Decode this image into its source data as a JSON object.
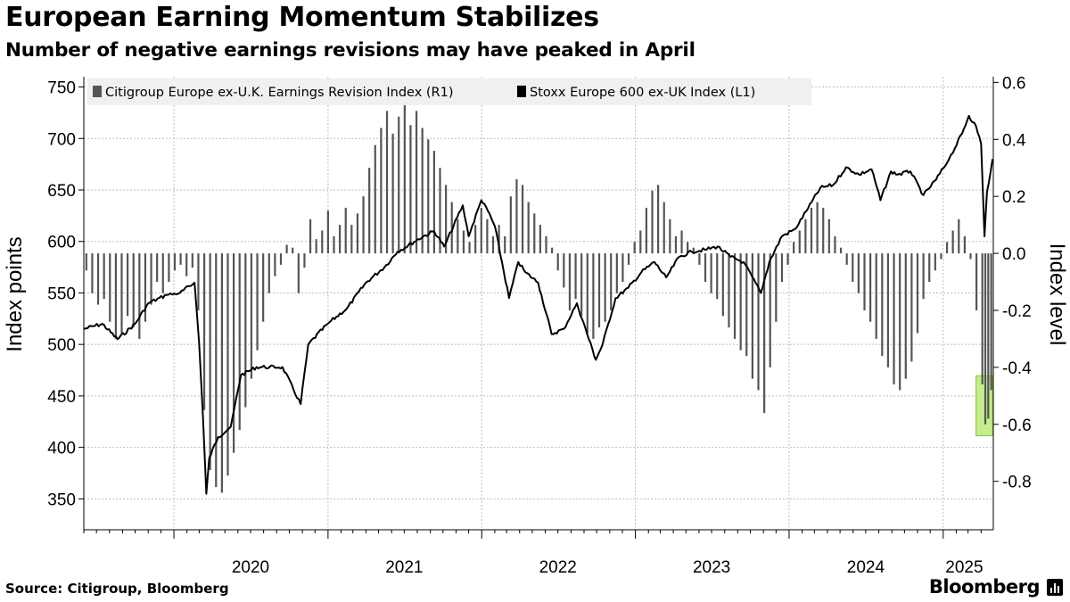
{
  "header": {
    "title": "European Earning Momentum Stabilizes",
    "subtitle": "Number of negative earnings revisions may have peaked in April"
  },
  "footer": {
    "source": "Source: Citigroup, Bloomberg",
    "brand": "Bloomberg"
  },
  "colors": {
    "bars": "#555555",
    "line": "#000000",
    "grid": "#bdbdbd",
    "highlight_fill": "#c6ec8e",
    "highlight_stroke": "#86c232",
    "legend_bg": "#f0f0f0"
  },
  "chart_data": {
    "type": "bar+line",
    "title": "European Earning Momentum Stabilizes",
    "subtitle": "Number of negative earnings revisions may have peaked in April",
    "legend": [
      {
        "label": "Citigroup Europe ex-U.K. Earnings Revision Index (R1)",
        "swatch": "#555555"
      },
      {
        "label": "Stoxx Europe 600 ex-UK Index (L1)",
        "swatch": "#000000"
      }
    ],
    "legend_position": "top-left",
    "grid": true,
    "x_axis": {
      "type": "date",
      "range": [
        "2019-06-01",
        "2025-04-30"
      ],
      "tick_labels": [
        "2020",
        "2021",
        "2022",
        "2023",
        "2024",
        "2025"
      ]
    },
    "y_left": {
      "label": "Index points",
      "ylim": [
        320,
        760
      ],
      "ticks": [
        350,
        400,
        450,
        500,
        550,
        600,
        650,
        700,
        750
      ]
    },
    "y_right": {
      "label": "Index level",
      "ylim": [
        -0.97,
        0.62
      ],
      "ticks": [
        "0.6",
        "0.4",
        "0.2",
        "0.0",
        "-0.2",
        "-0.4",
        "-0.6",
        "-0.8"
      ]
    },
    "highlight": {
      "x_range": [
        "2025-03-20",
        "2025-04-28"
      ],
      "y_range_right": [
        -0.64,
        -0.43
      ]
    },
    "series": [
      {
        "name": "Stoxx Europe 600 ex-UK Index (L1)",
        "type": "line",
        "axis": "left",
        "points": [
          [
            "2019-06-01",
            515
          ],
          [
            "2019-07-15",
            520
          ],
          [
            "2019-08-20",
            505
          ],
          [
            "2019-10-01",
            520
          ],
          [
            "2019-11-01",
            540
          ],
          [
            "2019-12-15",
            548
          ],
          [
            "2020-01-15",
            550
          ],
          [
            "2020-02-19",
            560
          ],
          [
            "2020-03-01",
            500
          ],
          [
            "2020-03-10",
            430
          ],
          [
            "2020-03-18",
            355
          ],
          [
            "2020-03-25",
            390
          ],
          [
            "2020-04-15",
            410
          ],
          [
            "2020-05-15",
            420
          ],
          [
            "2020-06-08",
            470
          ],
          [
            "2020-07-15",
            478
          ],
          [
            "2020-08-15",
            478
          ],
          [
            "2020-09-15",
            478
          ],
          [
            "2020-10-28",
            442
          ],
          [
            "2020-11-15",
            500
          ],
          [
            "2020-12-31",
            520
          ],
          [
            "2021-02-15",
            535
          ],
          [
            "2021-04-01",
            560
          ],
          [
            "2021-05-15",
            575
          ],
          [
            "2021-06-15",
            590
          ],
          [
            "2021-08-15",
            605
          ],
          [
            "2021-09-10",
            610
          ],
          [
            "2021-10-04",
            595
          ],
          [
            "2021-11-17",
            635
          ],
          [
            "2021-12-01",
            605
          ],
          [
            "2021-12-31",
            640
          ],
          [
            "2022-01-15",
            630
          ],
          [
            "2022-02-01",
            615
          ],
          [
            "2022-03-07",
            545
          ],
          [
            "2022-03-29",
            580
          ],
          [
            "2022-04-15",
            570
          ],
          [
            "2022-05-15",
            560
          ],
          [
            "2022-06-16",
            510
          ],
          [
            "2022-07-15",
            515
          ],
          [
            "2022-08-15",
            540
          ],
          [
            "2022-09-29",
            485
          ],
          [
            "2022-10-15",
            500
          ],
          [
            "2022-11-15",
            545
          ],
          [
            "2022-12-15",
            555
          ],
          [
            "2023-01-15",
            570
          ],
          [
            "2023-02-15",
            580
          ],
          [
            "2023-03-15",
            565
          ],
          [
            "2023-04-15",
            585
          ],
          [
            "2023-05-15",
            590
          ],
          [
            "2023-06-15",
            592
          ],
          [
            "2023-07-15",
            595
          ],
          [
            "2023-08-15",
            585
          ],
          [
            "2023-09-15",
            580
          ],
          [
            "2023-10-26",
            550
          ],
          [
            "2023-11-15",
            580
          ],
          [
            "2023-12-15",
            605
          ],
          [
            "2024-01-15",
            612
          ],
          [
            "2024-02-15",
            632
          ],
          [
            "2024-03-15",
            652
          ],
          [
            "2024-04-15",
            655
          ],
          [
            "2024-05-15",
            672
          ],
          [
            "2024-06-15",
            665
          ],
          [
            "2024-07-15",
            670
          ],
          [
            "2024-08-05",
            640
          ],
          [
            "2024-08-30",
            668
          ],
          [
            "2024-09-15",
            665
          ],
          [
            "2024-10-15",
            668
          ],
          [
            "2024-11-15",
            645
          ],
          [
            "2024-12-15",
            660
          ],
          [
            "2025-01-15",
            680
          ],
          [
            "2025-02-15",
            705
          ],
          [
            "2025-03-03",
            722
          ],
          [
            "2025-03-20",
            712
          ],
          [
            "2025-04-01",
            695
          ],
          [
            "2025-04-09",
            605
          ],
          [
            "2025-04-15",
            648
          ],
          [
            "2025-04-28",
            680
          ]
        ]
      },
      {
        "name": "Citigroup Europe ex-U.K. Earnings Revision Index (R1)",
        "type": "bar",
        "axis": "right",
        "points": [
          [
            "2019-06-07",
            -0.06
          ],
          [
            "2019-06-21",
            -0.14
          ],
          [
            "2019-07-05",
            -0.18
          ],
          [
            "2019-07-19",
            -0.16
          ],
          [
            "2019-08-02",
            -0.24
          ],
          [
            "2019-08-16",
            -0.3
          ],
          [
            "2019-08-30",
            -0.28
          ],
          [
            "2019-09-13",
            -0.22
          ],
          [
            "2019-09-27",
            -0.26
          ],
          [
            "2019-10-11",
            -0.3
          ],
          [
            "2019-10-25",
            -0.24
          ],
          [
            "2019-11-08",
            -0.18
          ],
          [
            "2019-11-22",
            -0.1
          ],
          [
            "2019-12-06",
            -0.14
          ],
          [
            "2019-12-20",
            -0.1
          ],
          [
            "2020-01-03",
            -0.06
          ],
          [
            "2020-01-17",
            -0.04
          ],
          [
            "2020-01-31",
            -0.08
          ],
          [
            "2020-02-14",
            -0.05
          ],
          [
            "2020-02-28",
            -0.2
          ],
          [
            "2020-03-13",
            -0.55
          ],
          [
            "2020-03-27",
            -0.76
          ],
          [
            "2020-04-10",
            -0.82
          ],
          [
            "2020-04-24",
            -0.84
          ],
          [
            "2020-05-08",
            -0.78
          ],
          [
            "2020-05-22",
            -0.7
          ],
          [
            "2020-06-05",
            -0.62
          ],
          [
            "2020-06-19",
            -0.54
          ],
          [
            "2020-07-03",
            -0.44
          ],
          [
            "2020-07-17",
            -0.34
          ],
          [
            "2020-07-31",
            -0.24
          ],
          [
            "2020-08-14",
            -0.14
          ],
          [
            "2020-08-28",
            -0.08
          ],
          [
            "2020-09-11",
            -0.04
          ],
          [
            "2020-09-25",
            0.03
          ],
          [
            "2020-10-09",
            0.02
          ],
          [
            "2020-10-23",
            -0.14
          ],
          [
            "2020-11-06",
            -0.05
          ],
          [
            "2020-11-20",
            0.12
          ],
          [
            "2020-12-04",
            0.05
          ],
          [
            "2020-12-18",
            0.08
          ],
          [
            "2021-01-01",
            0.15
          ],
          [
            "2021-01-15",
            0.06
          ],
          [
            "2021-01-29",
            0.1
          ],
          [
            "2021-02-12",
            0.16
          ],
          [
            "2021-02-26",
            0.1
          ],
          [
            "2021-03-12",
            0.14
          ],
          [
            "2021-03-26",
            0.2
          ],
          [
            "2021-04-09",
            0.3
          ],
          [
            "2021-04-23",
            0.38
          ],
          [
            "2021-05-07",
            0.44
          ],
          [
            "2021-05-21",
            0.5
          ],
          [
            "2021-06-04",
            0.42
          ],
          [
            "2021-06-18",
            0.48
          ],
          [
            "2021-07-02",
            0.52
          ],
          [
            "2021-07-16",
            0.45
          ],
          [
            "2021-07-30",
            0.5
          ],
          [
            "2021-08-13",
            0.44
          ],
          [
            "2021-08-27",
            0.4
          ],
          [
            "2021-09-10",
            0.36
          ],
          [
            "2021-09-24",
            0.3
          ],
          [
            "2021-10-08",
            0.24
          ],
          [
            "2021-10-22",
            0.18
          ],
          [
            "2021-11-05",
            0.12
          ],
          [
            "2021-11-19",
            0.08
          ],
          [
            "2021-12-03",
            0.04
          ],
          [
            "2021-12-17",
            0.1
          ],
          [
            "2021-12-31",
            0.16
          ],
          [
            "2022-01-14",
            0.12
          ],
          [
            "2022-01-28",
            0.06
          ],
          [
            "2022-02-11",
            0.1
          ],
          [
            "2022-02-25",
            0.06
          ],
          [
            "2022-03-11",
            0.2
          ],
          [
            "2022-03-25",
            0.26
          ],
          [
            "2022-04-08",
            0.24
          ],
          [
            "2022-04-22",
            0.18
          ],
          [
            "2022-05-06",
            0.14
          ],
          [
            "2022-05-20",
            0.1
          ],
          [
            "2022-06-03",
            0.06
          ],
          [
            "2022-06-17",
            0.02
          ],
          [
            "2022-07-01",
            -0.06
          ],
          [
            "2022-07-15",
            -0.12
          ],
          [
            "2022-07-29",
            -0.2
          ],
          [
            "2022-08-12",
            -0.16
          ],
          [
            "2022-08-26",
            -0.22
          ],
          [
            "2022-09-09",
            -0.28
          ],
          [
            "2022-09-23",
            -0.3
          ],
          [
            "2022-10-07",
            -0.26
          ],
          [
            "2022-10-21",
            -0.24
          ],
          [
            "2022-11-04",
            -0.2
          ],
          [
            "2022-11-18",
            -0.14
          ],
          [
            "2022-12-02",
            -0.1
          ],
          [
            "2022-12-16",
            -0.04
          ],
          [
            "2022-12-30",
            0.04
          ],
          [
            "2023-01-13",
            0.08
          ],
          [
            "2023-01-27",
            0.16
          ],
          [
            "2023-02-10",
            0.22
          ],
          [
            "2023-02-24",
            0.24
          ],
          [
            "2023-03-10",
            0.18
          ],
          [
            "2023-03-24",
            0.12
          ],
          [
            "2023-04-07",
            0.06
          ],
          [
            "2023-04-21",
            0.08
          ],
          [
            "2023-05-05",
            0.04
          ],
          [
            "2023-05-19",
            0.02
          ],
          [
            "2023-06-02",
            -0.04
          ],
          [
            "2023-06-16",
            -0.1
          ],
          [
            "2023-06-30",
            -0.14
          ],
          [
            "2023-07-14",
            -0.16
          ],
          [
            "2023-07-28",
            -0.22
          ],
          [
            "2023-08-11",
            -0.26
          ],
          [
            "2023-08-25",
            -0.3
          ],
          [
            "2023-09-08",
            -0.34
          ],
          [
            "2023-09-22",
            -0.36
          ],
          [
            "2023-10-06",
            -0.44
          ],
          [
            "2023-10-20",
            -0.48
          ],
          [
            "2023-11-03",
            -0.56
          ],
          [
            "2023-11-17",
            -0.4
          ],
          [
            "2023-12-01",
            -0.24
          ],
          [
            "2023-12-15",
            -0.1
          ],
          [
            "2023-12-29",
            -0.04
          ],
          [
            "2024-01-12",
            0.04
          ],
          [
            "2024-01-26",
            0.08
          ],
          [
            "2024-02-09",
            0.12
          ],
          [
            "2024-02-23",
            0.16
          ],
          [
            "2024-03-08",
            0.18
          ],
          [
            "2024-03-22",
            0.16
          ],
          [
            "2024-04-05",
            0.12
          ],
          [
            "2024-04-19",
            0.06
          ],
          [
            "2024-05-03",
            0.02
          ],
          [
            "2024-05-17",
            -0.04
          ],
          [
            "2024-05-31",
            -0.1
          ],
          [
            "2024-06-14",
            -0.14
          ],
          [
            "2024-06-28",
            -0.2
          ],
          [
            "2024-07-12",
            -0.24
          ],
          [
            "2024-07-26",
            -0.3
          ],
          [
            "2024-08-09",
            -0.36
          ],
          [
            "2024-08-23",
            -0.4
          ],
          [
            "2024-09-06",
            -0.46
          ],
          [
            "2024-09-20",
            -0.48
          ],
          [
            "2024-10-04",
            -0.44
          ],
          [
            "2024-10-18",
            -0.38
          ],
          [
            "2024-11-01",
            -0.28
          ],
          [
            "2024-11-15",
            -0.16
          ],
          [
            "2024-11-29",
            -0.1
          ],
          [
            "2024-12-13",
            -0.06
          ],
          [
            "2024-12-27",
            -0.02
          ],
          [
            "2025-01-10",
            0.04
          ],
          [
            "2025-01-24",
            0.08
          ],
          [
            "2025-02-07",
            0.12
          ],
          [
            "2025-02-21",
            0.06
          ],
          [
            "2025-03-07",
            -0.02
          ],
          [
            "2025-03-21",
            -0.2
          ],
          [
            "2025-04-04",
            -0.46
          ],
          [
            "2025-04-11",
            -0.6
          ],
          [
            "2025-04-18",
            -0.58
          ],
          [
            "2025-04-25",
            -0.48
          ]
        ]
      }
    ]
  }
}
